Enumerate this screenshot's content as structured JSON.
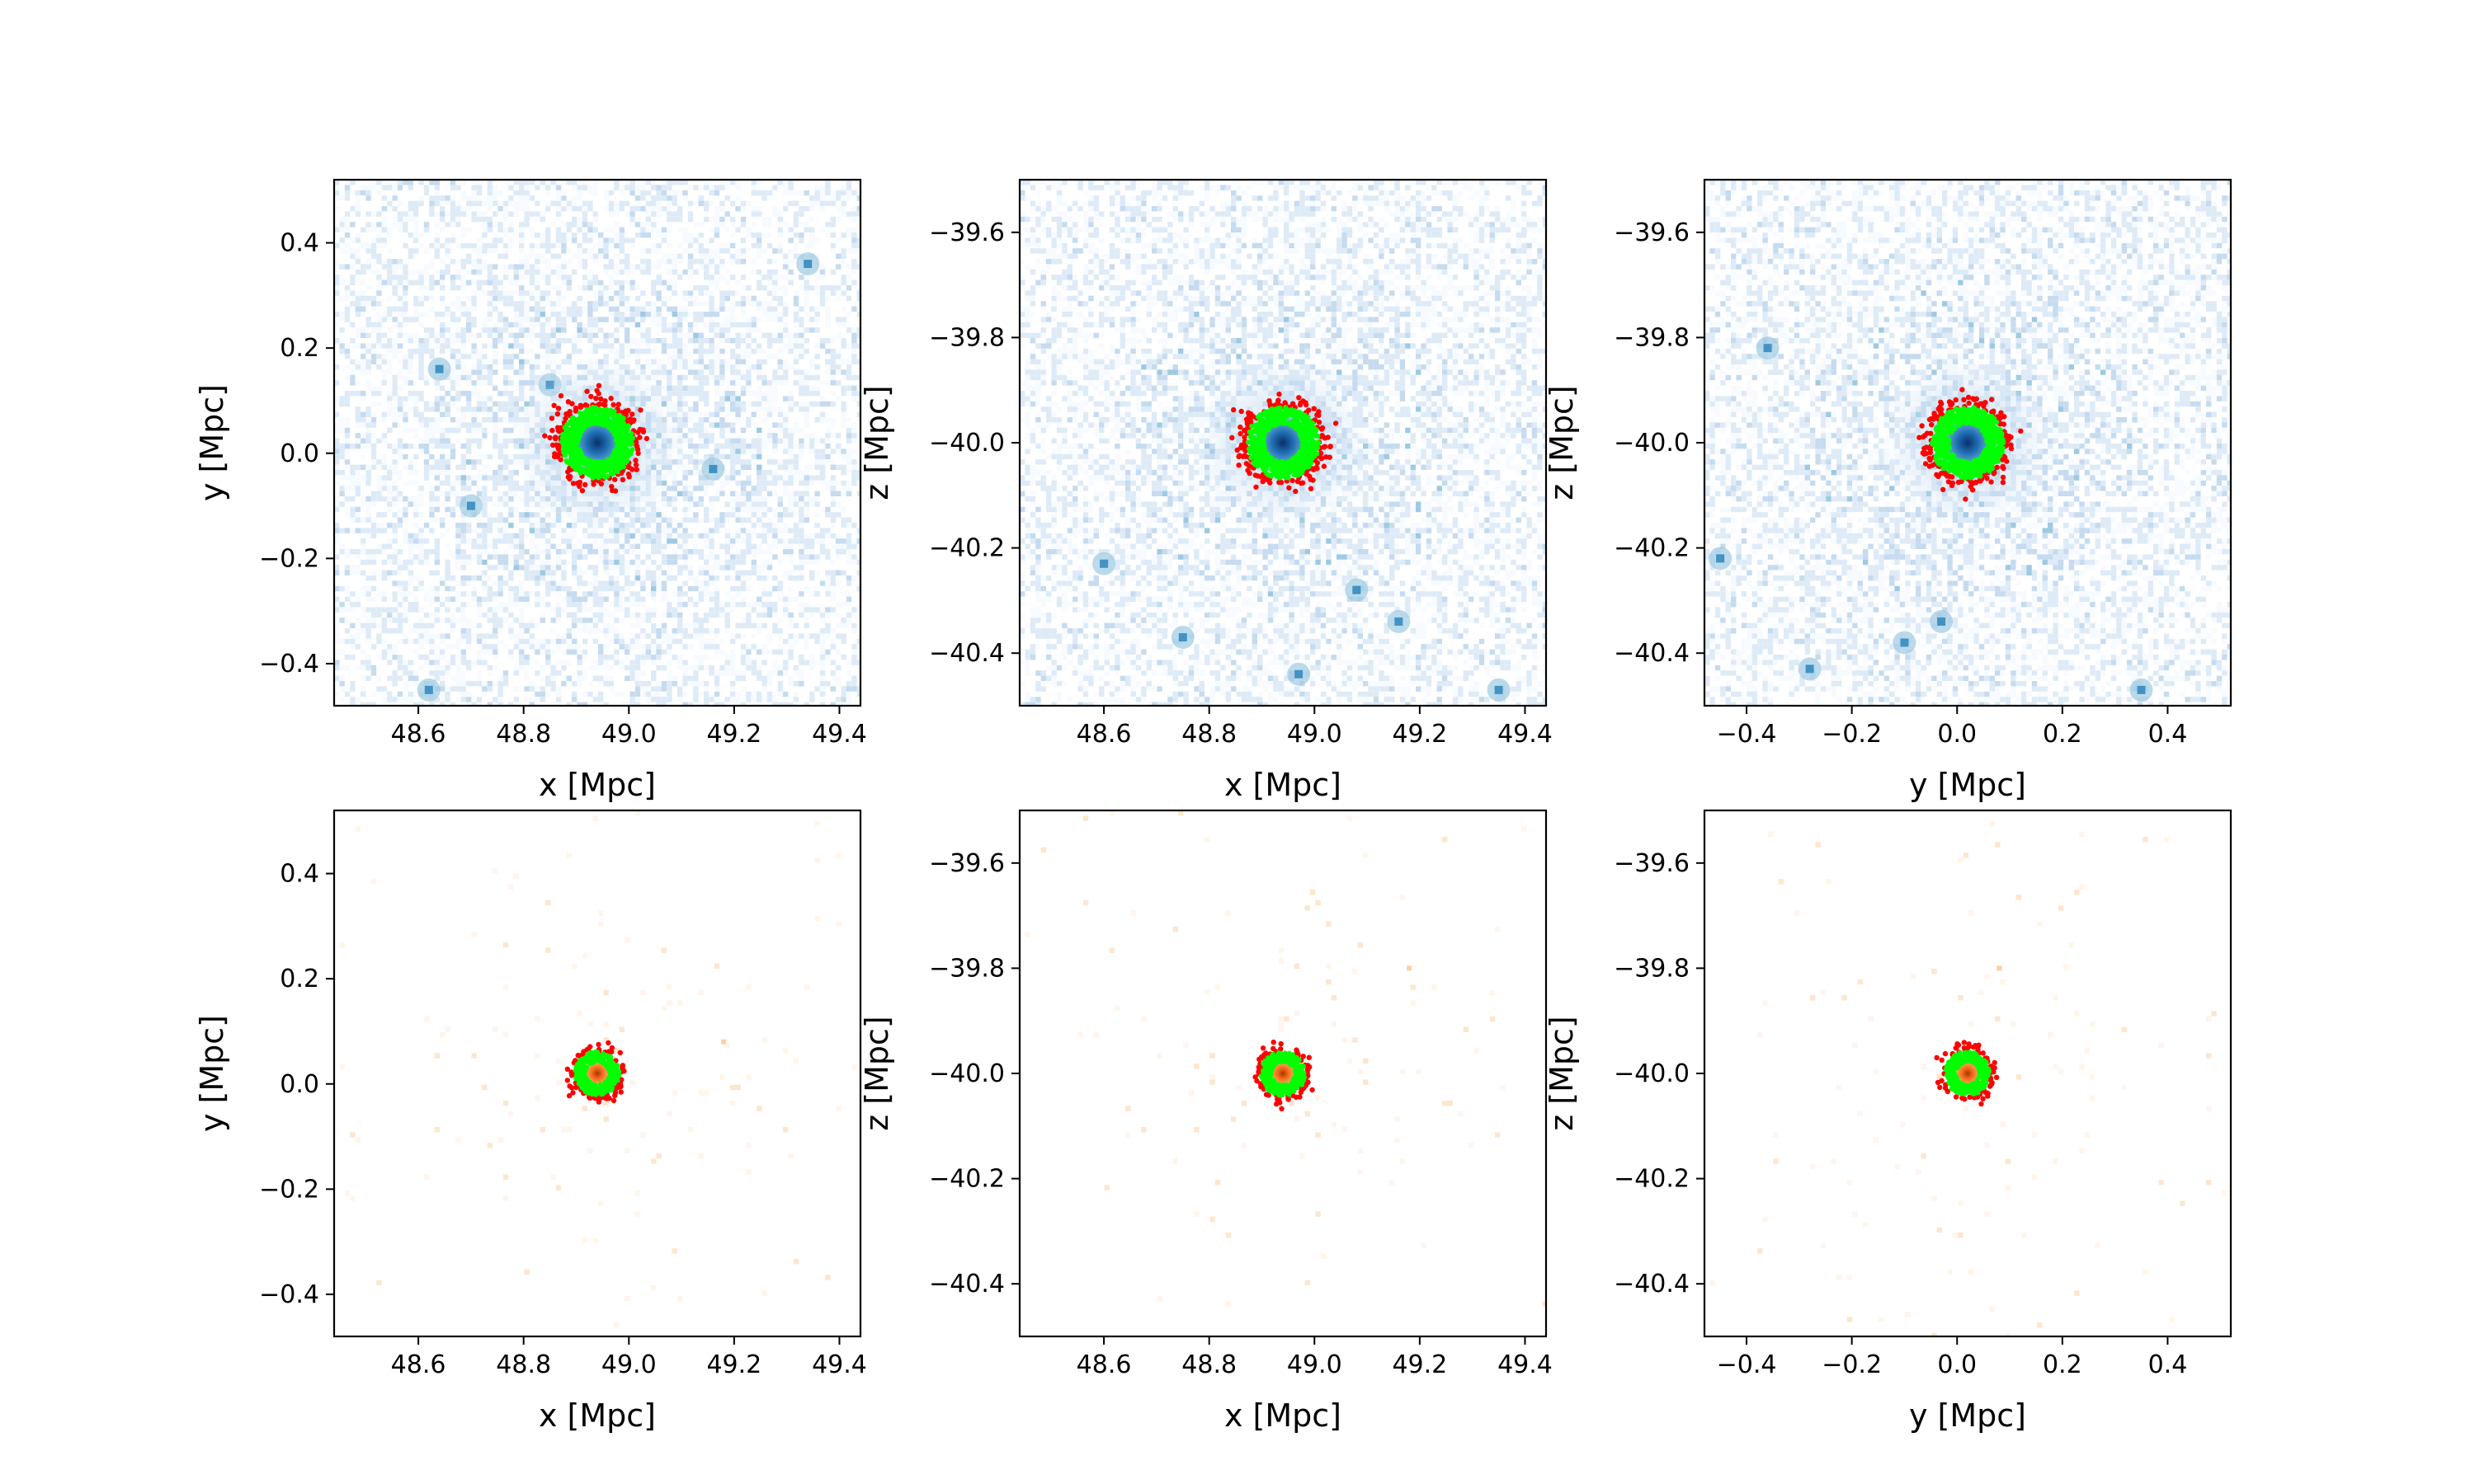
{
  "colors": {
    "dm_colormap": "Blues",
    "star_colormap": "Oranges",
    "marker_red": "#ff0000",
    "marker_green": "#00ff00",
    "blue_light": "#deebf7",
    "blue_mid": "#6baed6",
    "blue_dark": "#08306b",
    "orange_light": "#fee6ce",
    "orange_mid": "#fdae6b",
    "orange_dark": "#d94801"
  },
  "chart_data": [
    {
      "type": "heatmap",
      "component": "dark-matter",
      "projection": "x-y",
      "xlabel": "x [Mpc]",
      "ylabel": "y [Mpc]",
      "xlim": [
        48.44,
        49.44
      ],
      "ylim": [
        -0.48,
        0.52
      ],
      "xticks": [
        48.6,
        48.8,
        49.0,
        49.2,
        49.4
      ],
      "yticks": [
        -0.4,
        -0.2,
        0.0,
        0.2,
        0.4
      ],
      "xtick_labels": [
        "48.6",
        "48.8",
        "49.0",
        "49.2",
        "49.4"
      ],
      "ytick_labels": [
        "−0.4",
        "−0.2",
        "0.0",
        "0.2",
        "0.4"
      ],
      "center": [
        48.94,
        0.02
      ],
      "substructures": [
        [
          49.34,
          0.36
        ],
        [
          48.85,
          0.13
        ],
        [
          49.16,
          -0.03
        ],
        [
          48.7,
          -0.1
        ],
        [
          48.62,
          -0.45
        ],
        [
          48.64,
          0.16
        ]
      ],
      "overlay": {
        "red_radius": 0.08,
        "green_radius": 0.065
      }
    },
    {
      "type": "heatmap",
      "component": "dark-matter",
      "projection": "x-z",
      "xlabel": "x [Mpc]",
      "ylabel": "z [Mpc]",
      "xlim": [
        48.44,
        49.44
      ],
      "ylim": [
        -40.5,
        -39.5
      ],
      "xticks": [
        48.6,
        48.8,
        49.0,
        49.2,
        49.4
      ],
      "yticks": [
        -40.4,
        -40.2,
        -40.0,
        -39.8,
        -39.6
      ],
      "xtick_labels": [
        "48.6",
        "48.8",
        "49.0",
        "49.2",
        "49.4"
      ],
      "ytick_labels": [
        "−40.4",
        "−40.2",
        "−40.0",
        "−39.8",
        "−39.6"
      ],
      "center": [
        48.94,
        -40.0
      ],
      "substructures": [
        [
          48.6,
          -40.23
        ],
        [
          49.08,
          -40.28
        ],
        [
          49.16,
          -40.34
        ],
        [
          48.75,
          -40.37
        ],
        [
          49.35,
          -40.47
        ],
        [
          48.97,
          -40.44
        ]
      ],
      "overlay": {
        "red_radius": 0.08,
        "green_radius": 0.065
      }
    },
    {
      "type": "heatmap",
      "component": "dark-matter",
      "projection": "y-z",
      "xlabel": "y [Mpc]",
      "ylabel": "z [Mpc]",
      "xlim": [
        -0.48,
        0.52
      ],
      "ylim": [
        -40.5,
        -39.5
      ],
      "xticks": [
        -0.4,
        -0.2,
        0.0,
        0.2,
        0.4
      ],
      "yticks": [
        -40.4,
        -40.2,
        -40.0,
        -39.8,
        -39.6
      ],
      "xtick_labels": [
        "−0.4",
        "−0.2",
        "0.0",
        "0.2",
        "0.4"
      ],
      "ytick_labels": [
        "−40.4",
        "−40.2",
        "−40.0",
        "−39.8",
        "−39.6"
      ],
      "center": [
        0.02,
        -40.0
      ],
      "substructures": [
        [
          -0.45,
          -40.22
        ],
        [
          -0.28,
          -40.43
        ],
        [
          -0.1,
          -40.38
        ],
        [
          -0.03,
          -40.34
        ],
        [
          0.35,
          -40.47
        ],
        [
          -0.36,
          -39.82
        ]
      ],
      "overlay": {
        "red_radius": 0.08,
        "green_radius": 0.065
      }
    },
    {
      "type": "heatmap",
      "component": "stars",
      "projection": "x-y",
      "xlabel": "x [Mpc]",
      "ylabel": "y [Mpc]",
      "xlim": [
        48.44,
        49.44
      ],
      "ylim": [
        -0.48,
        0.52
      ],
      "xticks": [
        48.6,
        48.8,
        49.0,
        49.2,
        49.4
      ],
      "yticks": [
        -0.4,
        -0.2,
        0.0,
        0.2,
        0.4
      ],
      "xtick_labels": [
        "48.6",
        "48.8",
        "49.0",
        "49.2",
        "49.4"
      ],
      "ytick_labels": [
        "−0.4",
        "−0.2",
        "0.0",
        "0.2",
        "0.4"
      ],
      "center": [
        48.94,
        0.02
      ],
      "substructures": [
        [
          49.18,
          0.08
        ]
      ],
      "overlay": {
        "red_radius": 0.05,
        "green_radius": 0.04
      }
    },
    {
      "type": "heatmap",
      "component": "stars",
      "projection": "x-z",
      "xlabel": "x [Mpc]",
      "ylabel": "z [Mpc]",
      "xlim": [
        48.44,
        49.44
      ],
      "ylim": [
        -40.5,
        -39.5
      ],
      "xticks": [
        48.6,
        48.8,
        49.0,
        49.2,
        49.4
      ],
      "yticks": [
        -40.4,
        -40.2,
        -40.0,
        -39.8,
        -39.6
      ],
      "xtick_labels": [
        "48.6",
        "48.8",
        "49.0",
        "49.2",
        "49.4"
      ],
      "ytick_labels": [
        "−40.4",
        "−40.2",
        "−40.0",
        "−39.8",
        "−39.6"
      ],
      "center": [
        48.94,
        -40.0
      ],
      "substructures": [
        [
          49.18,
          -39.8
        ]
      ],
      "overlay": {
        "red_radius": 0.05,
        "green_radius": 0.04
      }
    },
    {
      "type": "heatmap",
      "component": "stars",
      "projection": "y-z",
      "xlabel": "y [Mpc]",
      "ylabel": "z [Mpc]",
      "xlim": [
        -0.48,
        0.52
      ],
      "ylim": [
        -40.5,
        -39.5
      ],
      "xticks": [
        -0.4,
        -0.2,
        0.0,
        0.2,
        0.4
      ],
      "yticks": [
        -40.4,
        -40.2,
        -40.0,
        -39.8,
        -39.6
      ],
      "xtick_labels": [
        "−0.4",
        "−0.2",
        "0.0",
        "0.2",
        "0.4"
      ],
      "ytick_labels": [
        "−40.4",
        "−40.2",
        "−40.0",
        "−39.8",
        "−39.6"
      ],
      "center": [
        0.02,
        -40.0
      ],
      "substructures": [
        [
          0.08,
          -39.8
        ]
      ],
      "overlay": {
        "red_radius": 0.05,
        "green_radius": 0.04
      }
    }
  ]
}
